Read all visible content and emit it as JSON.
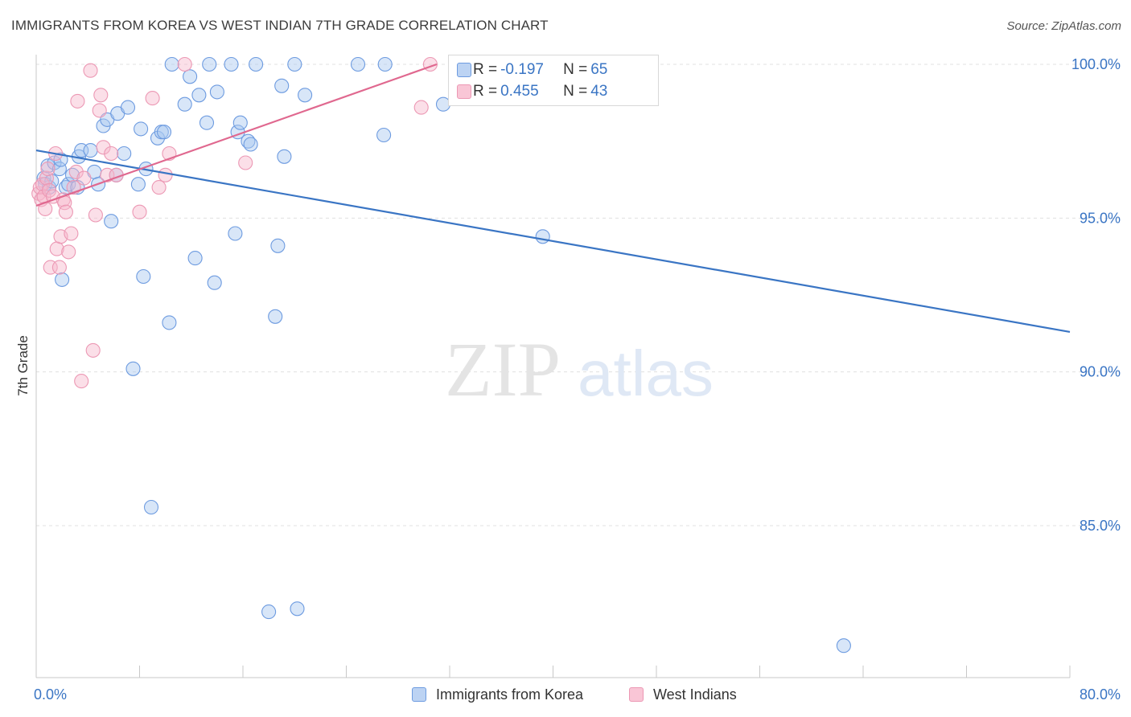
{
  "title": "IMMIGRANTS FROM KOREA VS WEST INDIAN 7TH GRADE CORRELATION CHART",
  "source": "Source: ZipAtlas.com",
  "watermark": {
    "part1": "ZIP",
    "part2": "atlas"
  },
  "colors": {
    "blue": "#3a75c4",
    "blue_fill": "#a9c8f0",
    "blue_edge": "#6d9be0",
    "pink": "#e0688f",
    "pink_fill": "#f7b8cc",
    "pink_edge": "#ec98b4",
    "grid": "#e0e0e0",
    "tick_label": "#3a75c4"
  },
  "stats": [
    {
      "r_label": "R = ",
      "r_value": "-0.197",
      "n_label": "N = ",
      "n_value": "65"
    },
    {
      "r_label": "R = ",
      "r_value": "0.455",
      "n_label": "N = ",
      "n_value": "43"
    }
  ],
  "legend": [
    {
      "label": "Immigrants from Korea"
    },
    {
      "label": "West Indians"
    }
  ],
  "chart_data": {
    "type": "scatter",
    "title": "IMMIGRANTS FROM KOREA VS WEST INDIAN 7TH GRADE CORRELATION CHART",
    "xlabel": "",
    "ylabel": "7th Grade",
    "xlim": [
      0,
      80
    ],
    "ylim": [
      80.5,
      101
    ],
    "x_tick_labels": [
      "0.0%",
      "80.0%"
    ],
    "y_ticks": [
      85,
      90,
      95,
      100
    ],
    "y_tick_labels": [
      "85.0%",
      "90.0%",
      "95.0%",
      "100.0%"
    ],
    "grid": true,
    "legend_position": "bottom",
    "series": [
      {
        "name": "Immigrants from Korea",
        "trend": {
          "x": [
            0,
            80
          ],
          "y": [
            97.2,
            91.3
          ]
        },
        "points": [
          [
            0.6,
            96.3
          ],
          [
            0.7,
            96.1
          ],
          [
            0.9,
            96.7
          ],
          [
            1.0,
            96.0
          ],
          [
            1.2,
            96.2
          ],
          [
            1.4,
            96.8
          ],
          [
            1.8,
            96.6
          ],
          [
            1.9,
            96.9
          ],
          [
            2.3,
            96.0
          ],
          [
            2.5,
            96.1
          ],
          [
            2.8,
            96.4
          ],
          [
            3.2,
            96.0
          ],
          [
            2.0,
            93.0
          ],
          [
            3.3,
            97.0
          ],
          [
            3.5,
            97.2
          ],
          [
            4.2,
            97.2
          ],
          [
            4.5,
            96.5
          ],
          [
            4.8,
            96.1
          ],
          [
            5.2,
            98.0
          ],
          [
            5.5,
            98.2
          ],
          [
            5.8,
            94.9
          ],
          [
            6.2,
            96.4
          ],
          [
            6.3,
            98.4
          ],
          [
            6.8,
            97.1
          ],
          [
            7.1,
            98.6
          ],
          [
            7.5,
            90.1
          ],
          [
            7.9,
            96.1
          ],
          [
            8.1,
            97.9
          ],
          [
            8.3,
            93.1
          ],
          [
            8.5,
            96.6
          ],
          [
            8.9,
            85.6
          ],
          [
            9.4,
            97.6
          ],
          [
            9.7,
            97.8
          ],
          [
            9.9,
            97.8
          ],
          [
            10.3,
            91.6
          ],
          [
            10.5,
            100.0
          ],
          [
            11.5,
            98.7
          ],
          [
            11.9,
            99.6
          ],
          [
            12.3,
            93.7
          ],
          [
            12.6,
            99.0
          ],
          [
            13.2,
            98.1
          ],
          [
            13.4,
            100.0
          ],
          [
            13.8,
            92.9
          ],
          [
            14.0,
            99.1
          ],
          [
            15.1,
            100.0
          ],
          [
            15.4,
            94.5
          ],
          [
            15.6,
            97.8
          ],
          [
            15.8,
            98.1
          ],
          [
            16.4,
            97.5
          ],
          [
            16.6,
            97.4
          ],
          [
            17.0,
            100.0
          ],
          [
            18.0,
            82.2
          ],
          [
            18.5,
            91.8
          ],
          [
            18.7,
            94.1
          ],
          [
            19.0,
            99.3
          ],
          [
            19.2,
            97.0
          ],
          [
            20.0,
            100.0
          ],
          [
            20.2,
            82.3
          ],
          [
            20.8,
            99.0
          ],
          [
            24.9,
            100.0
          ],
          [
            26.9,
            97.7
          ],
          [
            27.0,
            100.0
          ],
          [
            31.5,
            98.7
          ],
          [
            39.2,
            94.4
          ],
          [
            62.5,
            81.1
          ]
        ]
      },
      {
        "name": "West Indians",
        "trend": {
          "x": [
            0,
            31
          ],
          "y": [
            95.4,
            100.0
          ]
        },
        "points": [
          [
            0.2,
            95.8
          ],
          [
            0.3,
            96.0
          ],
          [
            0.4,
            95.6
          ],
          [
            0.5,
            96.1
          ],
          [
            0.6,
            95.7
          ],
          [
            0.7,
            95.3
          ],
          [
            0.8,
            96.3
          ],
          [
            1.0,
            95.9
          ],
          [
            1.1,
            93.4
          ],
          [
            1.3,
            95.7
          ],
          [
            1.5,
            97.1
          ],
          [
            1.6,
            94.0
          ],
          [
            1.8,
            93.4
          ],
          [
            1.9,
            94.4
          ],
          [
            2.1,
            95.6
          ],
          [
            2.2,
            95.5
          ],
          [
            2.3,
            95.2
          ],
          [
            2.5,
            93.9
          ],
          [
            2.7,
            94.5
          ],
          [
            2.9,
            96.0
          ],
          [
            3.1,
            96.5
          ],
          [
            3.2,
            98.8
          ],
          [
            3.5,
            89.7
          ],
          [
            3.7,
            96.3
          ],
          [
            4.2,
            99.8
          ],
          [
            4.4,
            90.7
          ],
          [
            4.6,
            95.1
          ],
          [
            4.9,
            98.5
          ],
          [
            5.0,
            99.0
          ],
          [
            5.2,
            97.3
          ],
          [
            5.5,
            96.4
          ],
          [
            5.8,
            97.1
          ],
          [
            6.2,
            96.4
          ],
          [
            8.0,
            95.2
          ],
          [
            9.0,
            98.9
          ],
          [
            9.5,
            96.0
          ],
          [
            10.0,
            96.4
          ],
          [
            10.3,
            97.1
          ],
          [
            11.5,
            100.0
          ],
          [
            16.2,
            96.8
          ],
          [
            29.8,
            98.6
          ],
          [
            30.5,
            100.0
          ],
          [
            0.9,
            96.6
          ]
        ]
      }
    ]
  }
}
